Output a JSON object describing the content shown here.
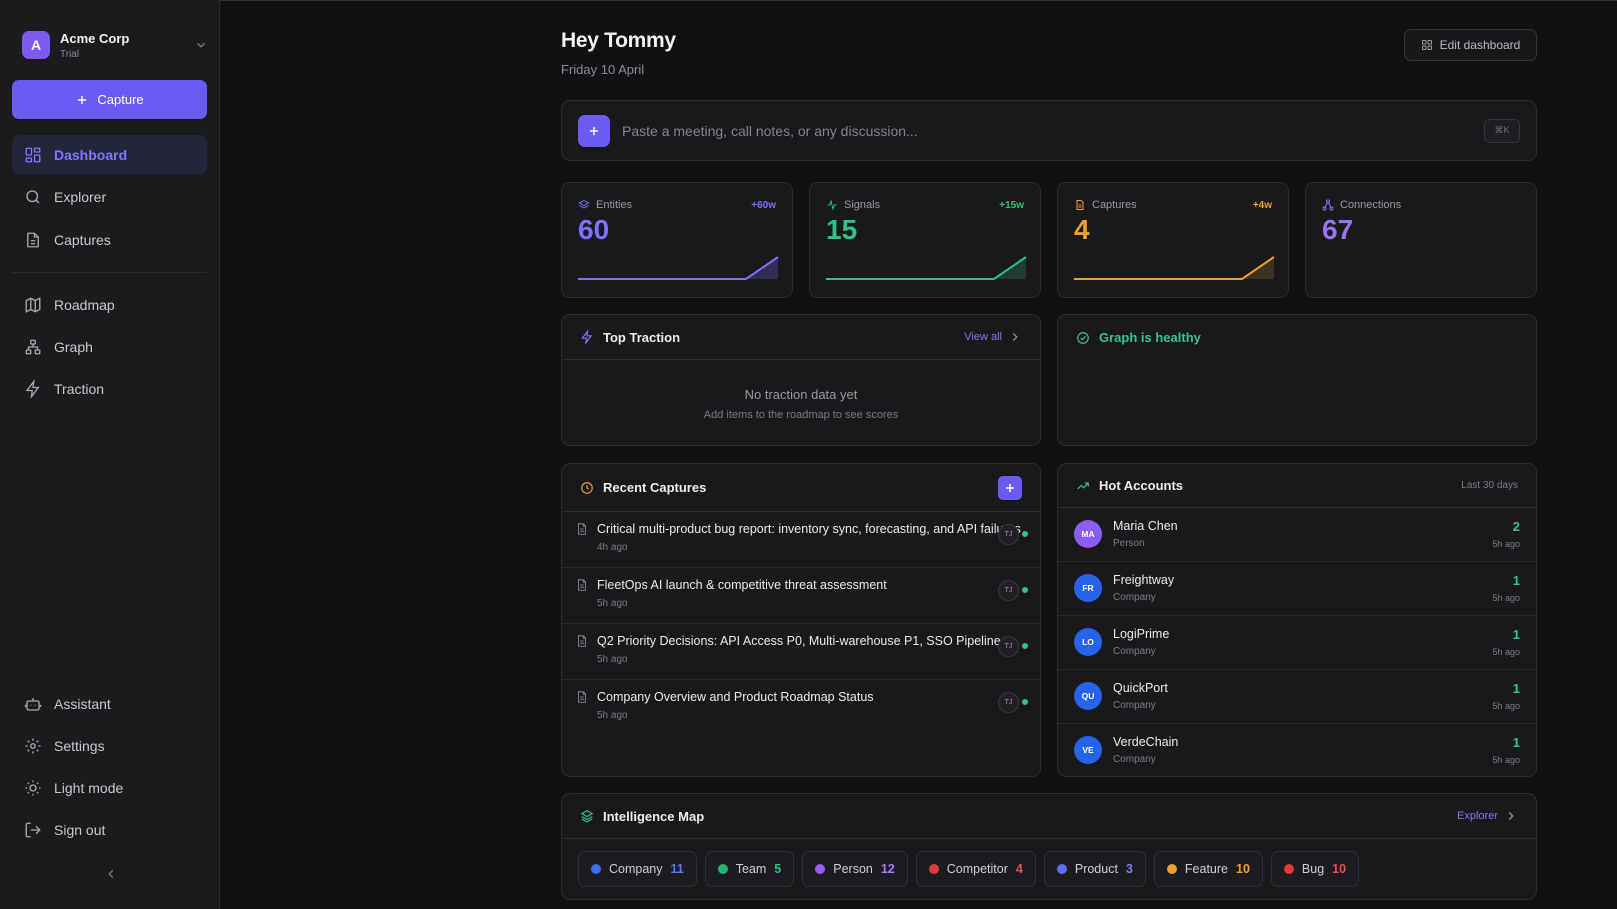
{
  "org": {
    "initial": "A",
    "name": "Acme Corp",
    "plan": "Trial"
  },
  "sidebar": {
    "capture_label": "Capture",
    "primary": [
      {
        "label": "Dashboard",
        "icon": "grid-icon",
        "active": true
      },
      {
        "label": "Explorer",
        "icon": "search-icon"
      },
      {
        "label": "Captures",
        "icon": "document-icon"
      }
    ],
    "secondary": [
      {
        "label": "Roadmap",
        "icon": "map-icon"
      },
      {
        "label": "Graph",
        "icon": "graph-icon"
      },
      {
        "label": "Traction",
        "icon": "bolt-icon"
      }
    ],
    "bottom": [
      {
        "label": "Assistant",
        "icon": "bot-icon"
      },
      {
        "label": "Settings",
        "icon": "gear-icon"
      },
      {
        "label": "Light mode",
        "icon": "sun-icon"
      },
      {
        "label": "Sign out",
        "icon": "sign-out-icon"
      }
    ]
  },
  "header": {
    "greeting": "Hey Tommy",
    "date": "Friday 10 April",
    "edit_label": "Edit dashboard"
  },
  "paste": {
    "placeholder": "Paste a meeting, call notes, or any discussion...",
    "shortcut": "⌘K"
  },
  "stats": [
    {
      "label": "Entities",
      "value": "60",
      "delta": "+60w",
      "color": "#7b73ff"
    },
    {
      "label": "Signals",
      "value": "15",
      "delta": "+15w",
      "color": "#2fc284"
    },
    {
      "label": "Captures",
      "value": "4",
      "delta": "+4w",
      "color": "#f0a12b"
    },
    {
      "label": "Connections",
      "value": "67",
      "delta": "",
      "color": "#9a72f5"
    }
  ],
  "top_traction": {
    "title": "Top Traction",
    "link": "View all",
    "empty_title": "No traction data yet",
    "empty_sub": "Add items to the roadmap to see scores"
  },
  "graph_health": {
    "title": "Graph is healthy"
  },
  "recent_captures": {
    "title": "Recent Captures",
    "items": [
      {
        "title": "Critical multi-product bug report: inventory sync, forecasting, and API failures",
        "time": "4h ago",
        "author": "TJ"
      },
      {
        "title": "FleetOps AI launch & competitive threat assessment",
        "time": "5h ago",
        "author": "TJ"
      },
      {
        "title": "Q2 Priority Decisions: API Access P0, Multi-warehouse P1, SSO Pipeline",
        "time": "5h ago",
        "author": "TJ"
      },
      {
        "title": "Company Overview and Product Roadmap Status",
        "time": "5h ago",
        "author": "TJ"
      }
    ]
  },
  "hot_accounts": {
    "title": "Hot Accounts",
    "range": "Last 30 days",
    "items": [
      {
        "initials": "MA",
        "name": "Maria Chen",
        "type": "Person",
        "count": "2",
        "time": "5h ago",
        "color": "#8b5cf6"
      },
      {
        "initials": "FR",
        "name": "Freightway",
        "type": "Company",
        "count": "1",
        "time": "5h ago",
        "color": "#2563eb"
      },
      {
        "initials": "LO",
        "name": "LogiPrime",
        "type": "Company",
        "count": "1",
        "time": "5h ago",
        "color": "#2563eb"
      },
      {
        "initials": "QU",
        "name": "QuickPort",
        "type": "Company",
        "count": "1",
        "time": "5h ago",
        "color": "#2563eb"
      },
      {
        "initials": "VE",
        "name": "VerdeChain",
        "type": "Company",
        "count": "1",
        "time": "5h ago",
        "color": "#2563eb"
      }
    ]
  },
  "intelligence_map": {
    "title": "Intelligence Map",
    "link": "Explorer",
    "chips": [
      {
        "label": "Company",
        "count": "11",
        "color": "#3b6cf0"
      },
      {
        "label": "Team",
        "count": "5",
        "color": "#22b573"
      },
      {
        "label": "Person",
        "count": "12",
        "color": "#9b5cf6"
      },
      {
        "label": "Competitor",
        "count": "4",
        "color": "#e03b3b"
      },
      {
        "label": "Product",
        "count": "3",
        "color": "#5b6cf0"
      },
      {
        "label": "Feature",
        "count": "10",
        "color": "#f0a12b"
      },
      {
        "label": "Bug",
        "count": "10",
        "color": "#e03b3b"
      }
    ]
  }
}
